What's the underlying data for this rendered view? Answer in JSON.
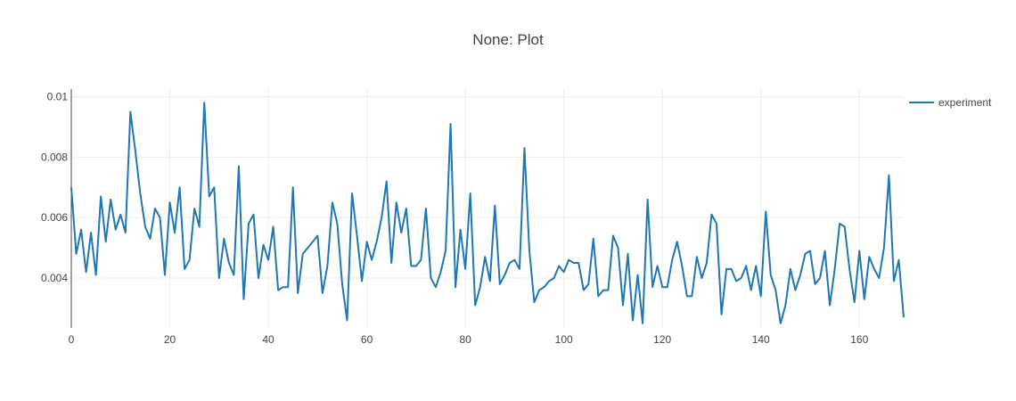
{
  "chart_data": {
    "type": "line",
    "title": "None: Plot",
    "xlabel": "",
    "ylabel": "",
    "xlim": [
      0,
      169
    ],
    "ylim": [
      0.00235,
      0.01025
    ],
    "x_ticks": [
      "0",
      "20",
      "40",
      "60",
      "80",
      "100",
      "120",
      "140",
      "160"
    ],
    "y_ticks": [
      "0.004",
      "0.006",
      "0.008",
      "0.01"
    ],
    "grid": true,
    "legend": "top-right",
    "series": [
      {
        "name": "experiment",
        "color": "#1f77b4",
        "x_start": 0,
        "x_step": 1,
        "values": [
          0.007,
          0.0048,
          0.0056,
          0.0042,
          0.0055,
          0.0041,
          0.0067,
          0.0052,
          0.0066,
          0.0056,
          0.0061,
          0.0055,
          0.0095,
          0.0082,
          0.0068,
          0.0057,
          0.0053,
          0.0063,
          0.006,
          0.0041,
          0.0065,
          0.0055,
          0.007,
          0.0043,
          0.0046,
          0.0063,
          0.0057,
          0.0098,
          0.0067,
          0.007,
          0.004,
          0.0053,
          0.0045,
          0.0041,
          0.0077,
          0.0033,
          0.0058,
          0.0061,
          0.004,
          0.0051,
          0.0046,
          0.0057,
          0.0036,
          0.0037,
          0.0037,
          0.007,
          0.0035,
          0.0048,
          0.005,
          0.0052,
          0.0054,
          0.0035,
          0.0044,
          0.0065,
          0.0058,
          0.0038,
          0.0026,
          0.0068,
          0.0054,
          0.0039,
          0.0052,
          0.0046,
          0.0052,
          0.006,
          0.0072,
          0.0045,
          0.0065,
          0.0055,
          0.0063,
          0.0044,
          0.0044,
          0.0046,
          0.0063,
          0.004,
          0.0037,
          0.0042,
          0.0049,
          0.0091,
          0.0037,
          0.0056,
          0.0043,
          0.0068,
          0.0031,
          0.0037,
          0.0047,
          0.0039,
          0.0064,
          0.0038,
          0.0041,
          0.0045,
          0.0046,
          0.0043,
          0.0083,
          0.0049,
          0.0032,
          0.0036,
          0.0037,
          0.0039,
          0.004,
          0.0044,
          0.0042,
          0.0046,
          0.0045,
          0.0045,
          0.0036,
          0.0038,
          0.0053,
          0.0034,
          0.0036,
          0.0036,
          0.0054,
          0.005,
          0.0031,
          0.0048,
          0.0026,
          0.0041,
          0.0025,
          0.0066,
          0.0037,
          0.0044,
          0.0037,
          0.0037,
          0.0046,
          0.0052,
          0.0044,
          0.0034,
          0.0034,
          0.0047,
          0.004,
          0.0045,
          0.0061,
          0.0058,
          0.0028,
          0.0043,
          0.0043,
          0.0039,
          0.004,
          0.0044,
          0.0036,
          0.0044,
          0.0034,
          0.0062,
          0.0041,
          0.0036,
          0.0025,
          0.0031,
          0.0043,
          0.0036,
          0.0041,
          0.0048,
          0.0049,
          0.0038,
          0.004,
          0.0049,
          0.0031,
          0.0043,
          0.0058,
          0.0057,
          0.0043,
          0.0032,
          0.0049,
          0.0033,
          0.0047,
          0.0043,
          0.004,
          0.005,
          0.0074,
          0.0039,
          0.0046,
          0.0027
        ]
      }
    ]
  }
}
